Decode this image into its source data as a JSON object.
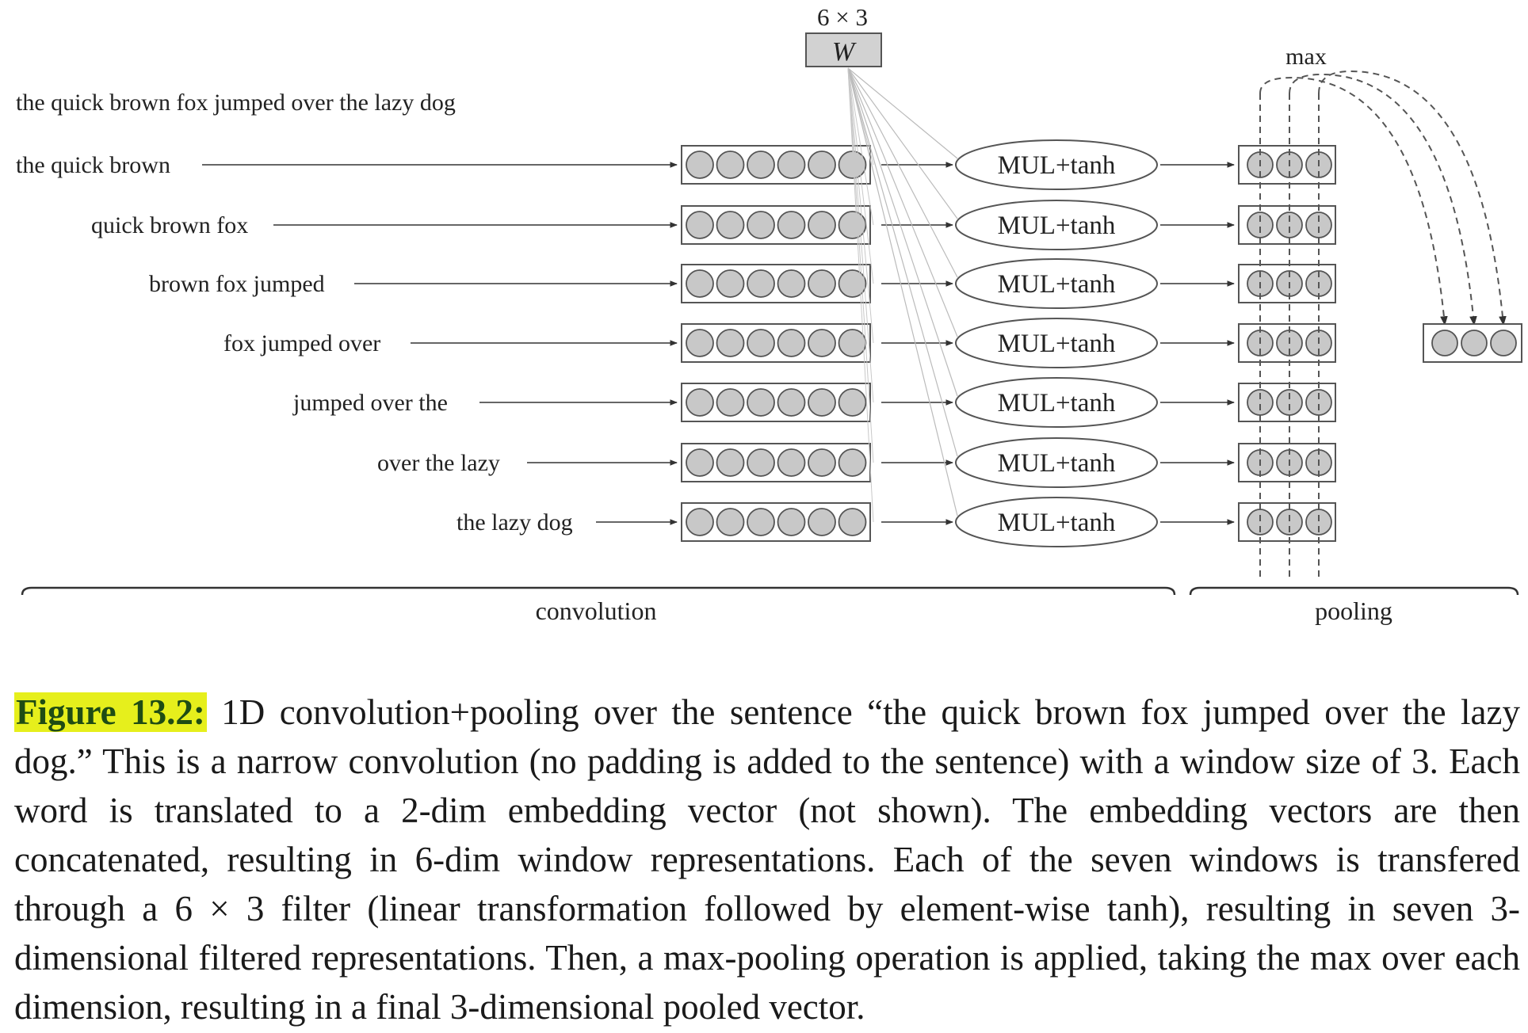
{
  "diagram": {
    "sentence": "the quick brown fox jumped over the lazy dog",
    "windows": [
      "the quick brown",
      "quick brown fox",
      "brown fox jumped",
      "fox jumped over",
      "jumped over the",
      "over the lazy",
      "the lazy dog"
    ],
    "filter_dims": "6 × 3",
    "filter_label": "W",
    "op_label": "MUL+tanh",
    "pool_label": "max",
    "window_vector_dim": 6,
    "filtered_vector_dim": 3,
    "pooled_vector_dim": 3,
    "section_convolution": "convolution",
    "section_pooling": "pooling",
    "colors": {
      "circle_fill": "#c8c8c8",
      "box_fill": "#ffffff",
      "filter_fill": "#d2d2d2",
      "line": "#444444",
      "caption_highlight": "#e6ef1c",
      "caption_label": "#1f4c14"
    }
  },
  "caption": {
    "label": "Figure 13.2:",
    "text": " 1D convolution+pooling over the sentence “the quick brown fox jumped over the lazy dog.” This is a narrow convolution (no padding is added to the sentence) with a window size of 3. Each word is translated to a 2-dim embedding vector (not shown). The embedding vectors are then concatenated, resulting in 6-dim window representations. Each of the seven windows is transfered through a 6 × 3 filter (linear transformation followed by element-wise tanh), resulting in seven 3-dimensional filtered representations. Then, a max-pooling operation is applied, taking the max over each dimension, resulting in a final 3-dimensional pooled vector."
  }
}
